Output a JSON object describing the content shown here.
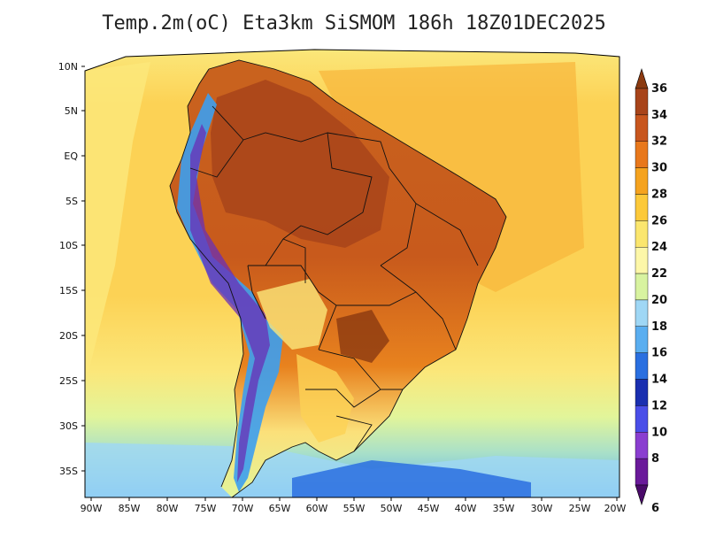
{
  "title": "Temp.2m(oC) Eta3km SiSMOM 186h 18Z01DEC2025",
  "colors": {
    "ocean_warm": "#fcd255",
    "ocean_mid": "#fbe77a",
    "ocean_cool": "#e2f59a",
    "land_hot": "#b9501c",
    "land_warm": "#e8821e",
    "cold_blue": "#3c9ff0",
    "deep_blue": "#2356d6",
    "andes_purple": "#6a2fb5"
  },
  "lat_labels": [
    "10N",
    "5N",
    "EQ",
    "5S",
    "10S",
    "15S",
    "20S",
    "25S",
    "30S",
    "35S"
  ],
  "lon_labels": [
    "90W",
    "85W",
    "80W",
    "75W",
    "70W",
    "65W",
    "60W",
    "55W",
    "50W",
    "45W",
    "40W",
    "35W",
    "30W",
    "25W",
    "20W"
  ],
  "colorbar": {
    "levels": [
      "36",
      "34",
      "32",
      "30",
      "28",
      "26",
      "24",
      "22",
      "20",
      "18",
      "16",
      "14",
      "12",
      "10",
      "8",
      "6"
    ],
    "colors": [
      "#8b3a10",
      "#a8441a",
      "#c8561e",
      "#e8781c",
      "#f5a31f",
      "#fcc93a",
      "#fbe66e",
      "#fdf7a8",
      "#d8f3a0",
      "#9fd7f5",
      "#5aaef0",
      "#2a6fe0",
      "#1a2fb0",
      "#4a4ee8",
      "#8a3ed0",
      "#6a1a9a",
      "#4a0a6a"
    ]
  }
}
